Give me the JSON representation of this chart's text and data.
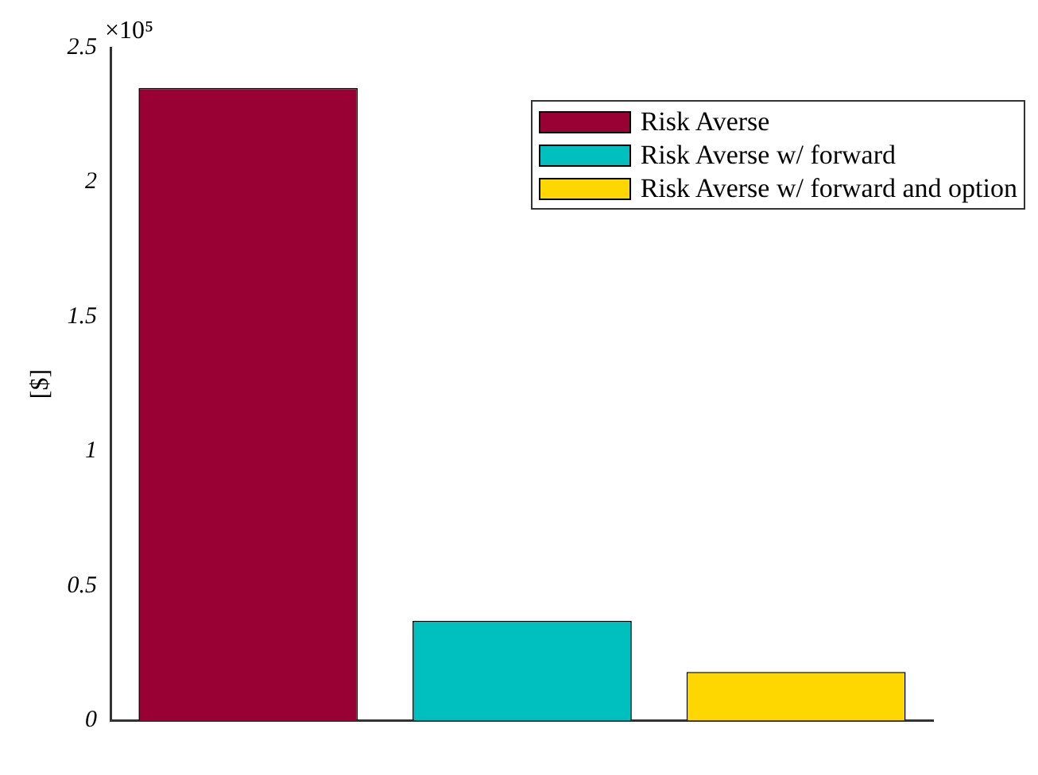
{
  "chart_data": {
    "type": "bar",
    "categories": [
      null,
      null,
      null
    ],
    "series": [
      {
        "name": "Risk Averse",
        "color": "#990033",
        "values": [
          2.35,
          null,
          null
        ]
      },
      {
        "name": "Risk Averse w/ forward",
        "color": "#00bfbf",
        "values": [
          null,
          0.37,
          null
        ]
      },
      {
        "name": "Risk Averse w/ forward and option",
        "color": "#ffd700",
        "values": [
          null,
          null,
          0.18
        ]
      }
    ],
    "ylabel": "[$]",
    "ylim": [
      0,
      2.5
    ],
    "yticks": [
      0,
      0.5,
      1,
      1.5,
      2,
      2.5
    ],
    "grid": false,
    "legend": "top right",
    "annotations": [
      "×10⁵"
    ]
  }
}
